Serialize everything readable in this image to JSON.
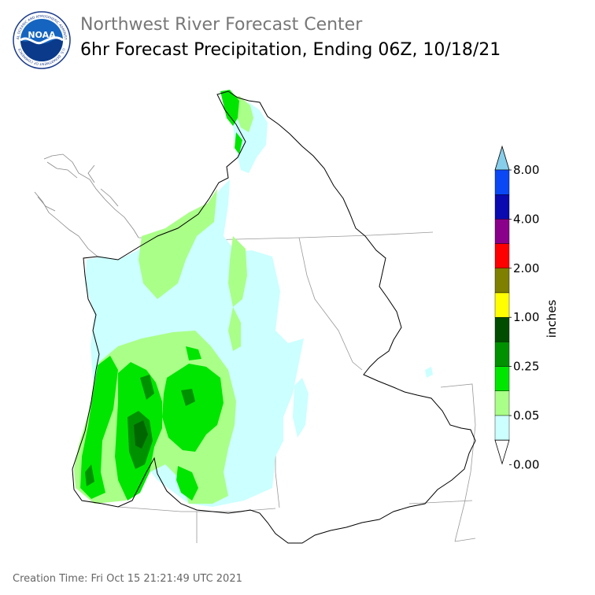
{
  "header": {
    "org_title": "Northwest River Forecast Center",
    "product_title": "6hr Forecast Precipitation, Ending 06Z, 10/18/21",
    "logo_text": "NOAA",
    "logo_ring_top": "NATIONAL OCEANIC AND ATMOSPHERIC ADMINISTRATION",
    "logo_ring_bottom": "U.S. DEPARTMENT OF COMMERCE"
  },
  "legend": {
    "unit": "inches",
    "labels": [
      "8.00",
      "4.00",
      "2.00",
      "1.00",
      "0.25",
      "0.05",
      "0.00"
    ],
    "colors_top_to_bottom": [
      "#87ceeb",
      "#0a47f5",
      "#0a0ab0",
      "#8b008b",
      "#ff0000",
      "#7f7f00",
      "#ffff00",
      "#004d00",
      "#009100",
      "#00e600",
      "#aaff88",
      "#ccffff",
      "#ffffff"
    ]
  },
  "map_colors": {
    "very_light": "#ccffff",
    "light_green": "#aaff88",
    "green": "#00e600",
    "mid_green": "#009100",
    "dark_green": "#006600",
    "basin_outline": "#000000",
    "state_lines": "#999999",
    "coastline": "#888888"
  },
  "footer": {
    "creation_time": "Creation Time: Fri Oct 15 21:21:49 UTC 2021"
  }
}
